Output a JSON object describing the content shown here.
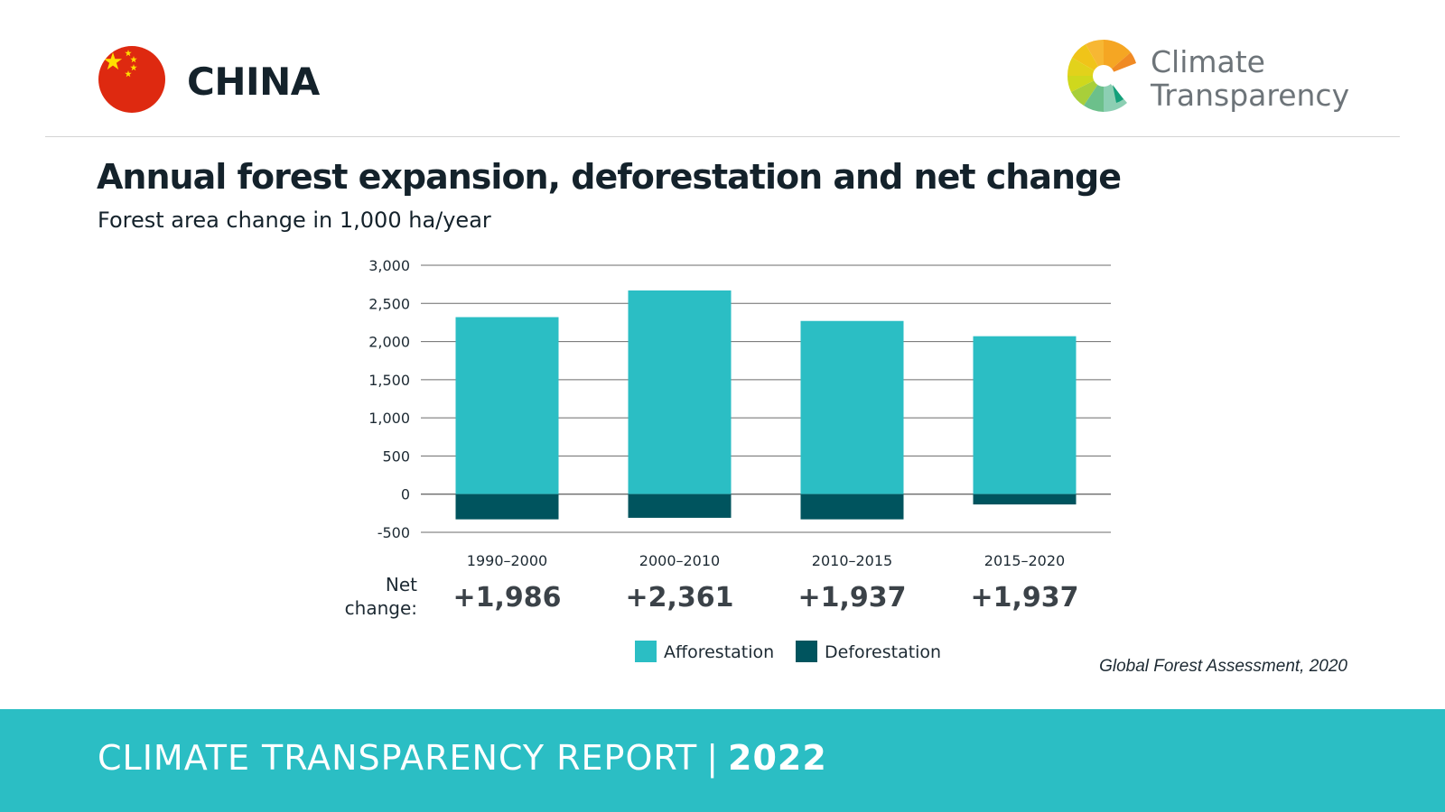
{
  "header": {
    "country": "CHINA",
    "logo_line1": "Climate",
    "logo_line2": "Transparency"
  },
  "colors": {
    "afforestation": "#2bbec4",
    "deforestation": "#00545e",
    "footer_bg": "#2bbec4",
    "flag_red": "#de2910",
    "flag_star": "#ffde00"
  },
  "chart_data": {
    "type": "bar",
    "title": "Annual forest expansion, deforestation and net change",
    "subtitle": "Forest area change in 1,000 ha/year",
    "categories": [
      "1990–2000",
      "2000–2010",
      "2010–2015",
      "2015–2020"
    ],
    "series": [
      {
        "name": "Afforestation",
        "values": [
          2320,
          2670,
          2270,
          2070
        ]
      },
      {
        "name": "Deforestation",
        "values": [
          -330,
          -310,
          -330,
          -135
        ]
      }
    ],
    "net_change_label": [
      "Net",
      "change:"
    ],
    "net_change": [
      "+1,986",
      "+2,361",
      "+1,937",
      "+1,937"
    ],
    "yticks": [
      3000,
      2500,
      2000,
      1500,
      1000,
      500,
      0,
      -500
    ],
    "ytick_labels": [
      "3,000",
      "2,500",
      "2,000",
      "1,500",
      "1,000",
      "500",
      "0",
      "-500"
    ],
    "ylim": [
      -500,
      3000
    ],
    "grid": true,
    "legend_position": "bottom-center"
  },
  "source": "Global Forest Assessment, 2020",
  "footer": {
    "report": "CLIMATE TRANSPARENCY REPORT",
    "separator": "|",
    "year": "2022"
  }
}
